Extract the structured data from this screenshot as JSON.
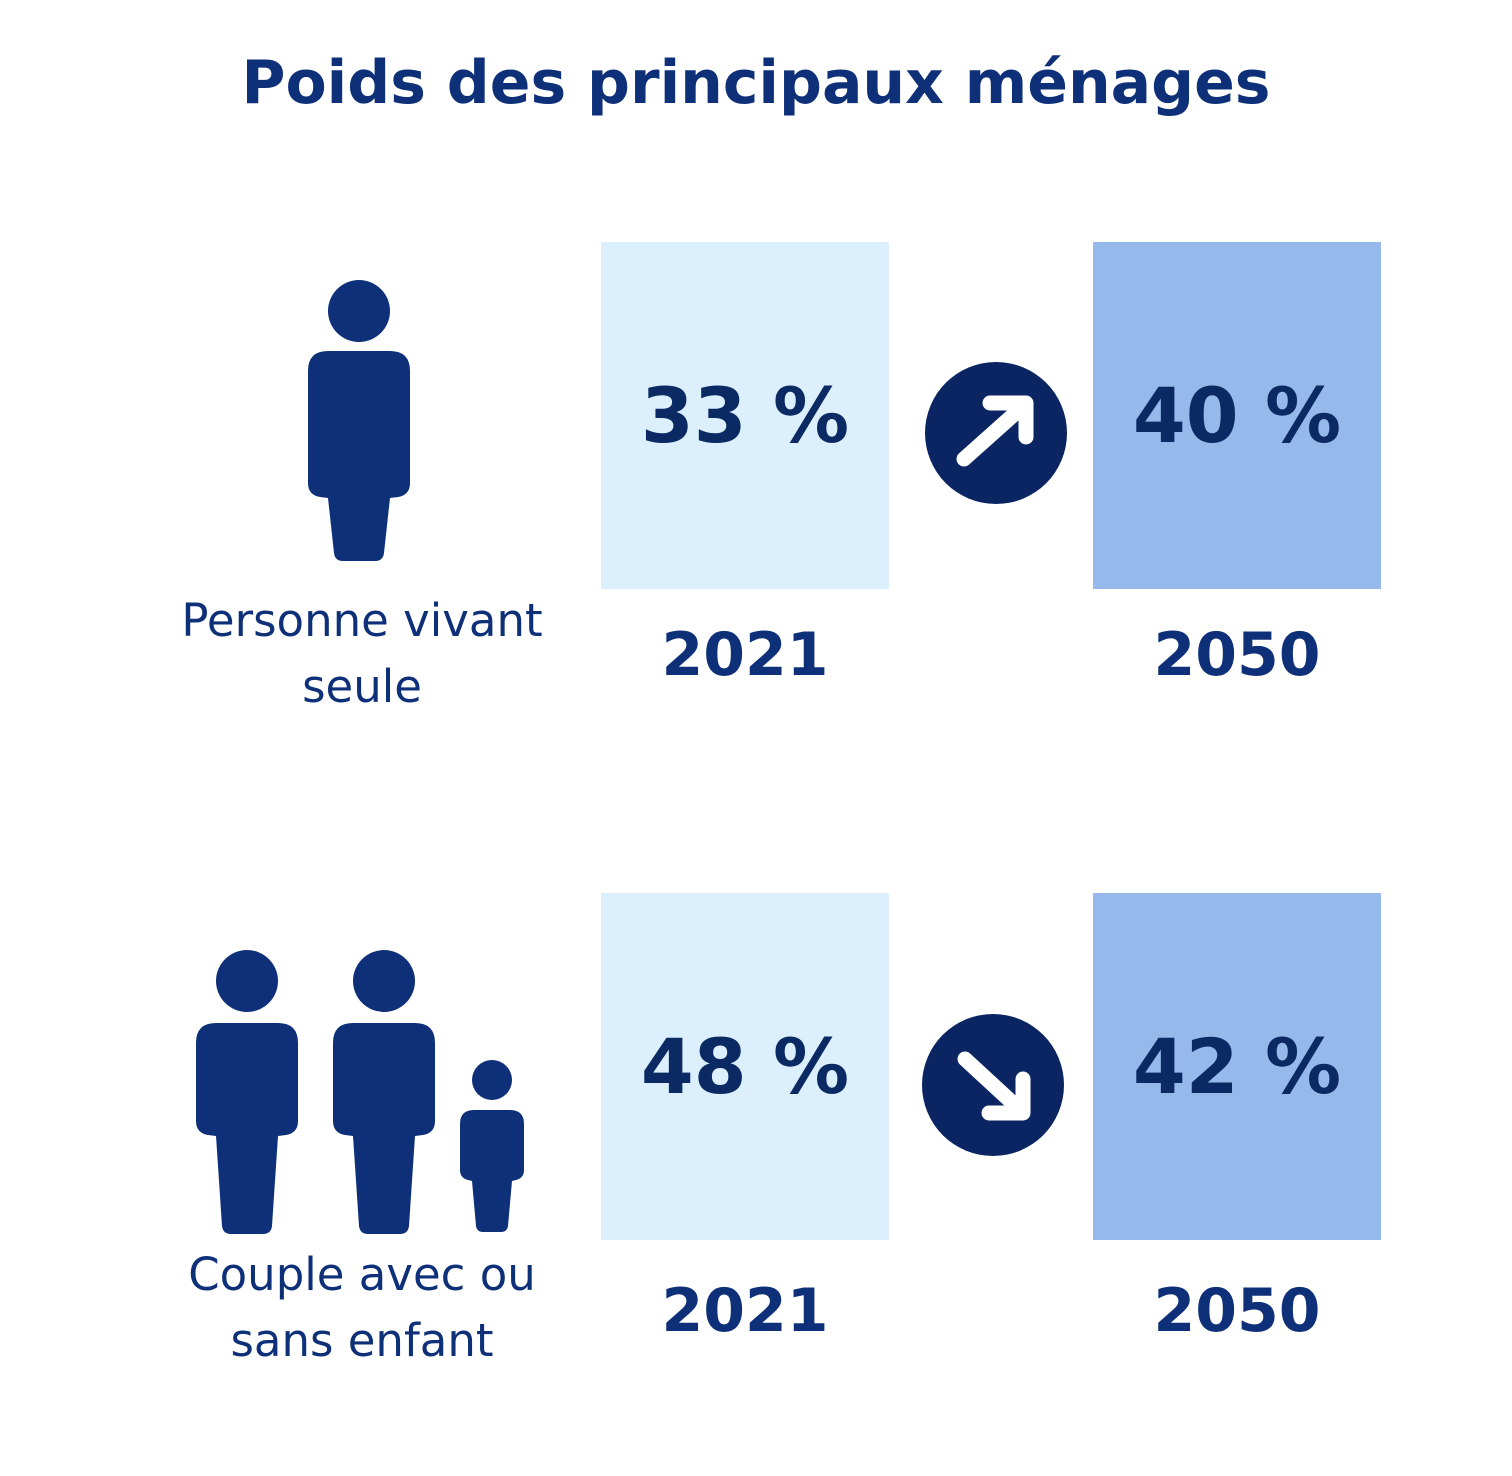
{
  "title": "Poids des principaux ménages",
  "colors": {
    "dark_blue": "#0e3078",
    "navy": "#0b2a63",
    "light_box": "#dbeffc",
    "mid_box": "#94b9ea",
    "arrow_circle": "#0b2563"
  },
  "chart_data": {
    "type": "table",
    "title": "Poids des principaux ménages",
    "unit": "%",
    "columns": [
      "2021",
      "2050"
    ],
    "rows": [
      {
        "category": "Personne vivant seule",
        "values": [
          33,
          40
        ],
        "labels": [
          "33 %",
          "40 %"
        ],
        "trend": "up",
        "icon": "single-person-icon"
      },
      {
        "category": "Couple avec ou sans enfant",
        "values": [
          48,
          42
        ],
        "labels": [
          "48 %",
          "42 %"
        ],
        "trend": "down",
        "icon": "family-icon"
      }
    ]
  },
  "rows": [
    {
      "label_lines": [
        "Personne vivant",
        "seule"
      ],
      "year_a": "2021",
      "year_b": "2050",
      "value_a": "33 %",
      "value_b": "40 %",
      "arrow_icon": "arrow-up-right-icon"
    },
    {
      "label_lines": [
        "Couple avec ou",
        "sans enfant"
      ],
      "year_a": "2021",
      "year_b": "2050",
      "value_a": "48 %",
      "value_b": "42 %",
      "arrow_icon": "arrow-down-right-icon"
    }
  ]
}
